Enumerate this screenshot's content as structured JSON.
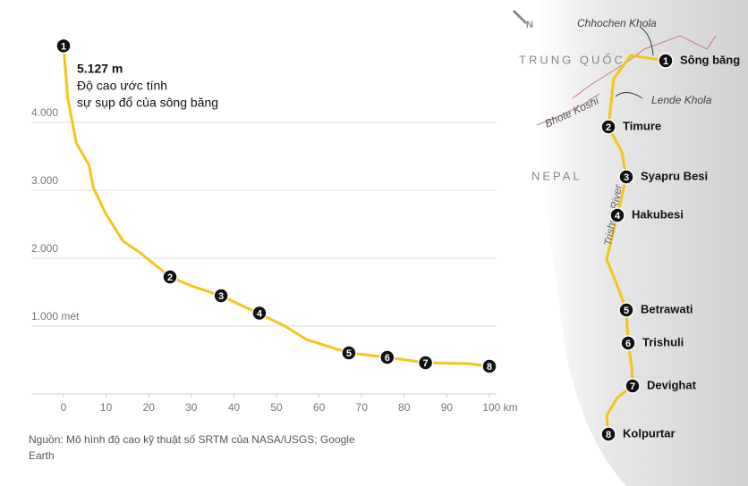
{
  "chart_data": {
    "type": "line",
    "annotation": {
      "title": "5.127 m",
      "lines": [
        "Độ cao ước tính",
        "sự sụp đổ của sông băng"
      ]
    },
    "source": [
      "Nguồn: Mô hình độ cao kỹ thuật số SRTM của NASA/USGS; Google",
      "Earth"
    ],
    "x": [
      0,
      1,
      3,
      6,
      7,
      10,
      14,
      18,
      25,
      30,
      37,
      45,
      52,
      57,
      67,
      76,
      85,
      95,
      100
    ],
    "series": [
      {
        "name": "Độ cao",
        "color": "#f5c518",
        "values": [
          5127,
          4355,
          3697,
          3368,
          3040,
          2645,
          2250,
          2079,
          1724,
          1592,
          1447,
          1210,
          1000,
          803,
          605,
          539,
          460,
          447,
          408
        ]
      }
    ],
    "markers": [
      {
        "label": "1",
        "x": 0,
        "y": 5127
      },
      {
        "label": "2",
        "x": 25,
        "y": 1724
      },
      {
        "label": "3",
        "x": 37,
        "y": 1447
      },
      {
        "label": "4",
        "x": 46,
        "y": 1190
      },
      {
        "label": "5",
        "x": 67,
        "y": 605
      },
      {
        "label": "6",
        "x": 76,
        "y": 539
      },
      {
        "label": "7",
        "x": 85,
        "y": 460
      },
      {
        "label": "8",
        "x": 100,
        "y": 408
      }
    ],
    "xlim": [
      0,
      100
    ],
    "ylim": [
      0,
      5500
    ],
    "xticks": [
      0,
      10,
      20,
      30,
      40,
      50,
      60,
      70,
      80,
      90,
      {
        "value": 100,
        "label": "100 km"
      }
    ],
    "yticks": [
      {
        "value": 1000,
        "label": "1.000 mét"
      },
      {
        "value": 2000,
        "label": "2.000"
      },
      {
        "value": 3000,
        "label": "3.000"
      },
      {
        "value": 4000,
        "label": "4.000"
      }
    ],
    "grid": true
  },
  "map": {
    "north": "N",
    "labels": [
      {
        "text": "Chhochen Khola"
      },
      {
        "text": "TRUNG QUỐC"
      },
      {
        "text": "Lende Khola"
      },
      {
        "text": "Bhote Koshi"
      },
      {
        "text": "NEPAL"
      },
      {
        "text": "Trishuli River"
      }
    ],
    "stations": [
      {
        "number": "1",
        "name": "Sông băng"
      },
      {
        "number": "2",
        "name": "Timure"
      },
      {
        "number": "3",
        "name": "Syapru Besi"
      },
      {
        "number": "4",
        "name": "Hakubesi"
      },
      {
        "number": "5",
        "name": "Betrawati"
      },
      {
        "number": "6",
        "name": "Trishuli"
      },
      {
        "number": "7",
        "name": "Devighat"
      },
      {
        "number": "8",
        "name": "Kolpurtar"
      }
    ]
  }
}
